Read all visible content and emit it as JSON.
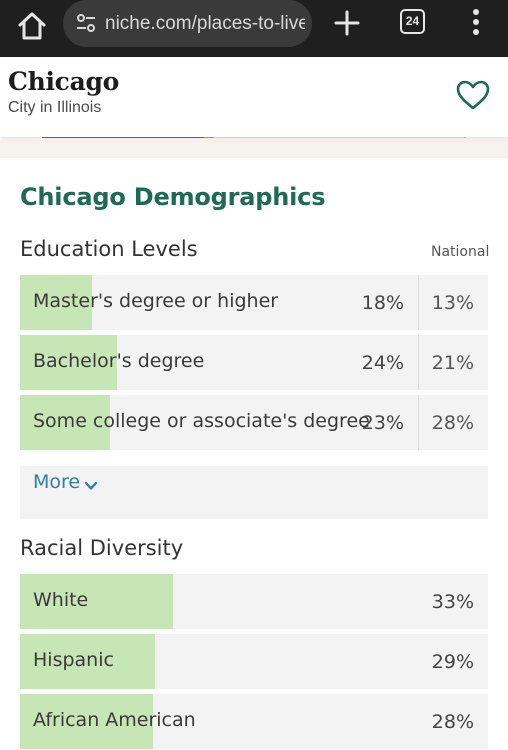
{
  "browser": {
    "url": "niche.com/places-to-live",
    "tab_count": "24"
  },
  "header": {
    "title": "Chicago",
    "subtitle": "City in Illinois"
  },
  "section": {
    "title": "Chicago Demographics"
  },
  "education": {
    "title": "Education Levels",
    "national_label": "National",
    "rows": [
      {
        "label": "Master's degree or higher",
        "value": "18%",
        "national": "13%",
        "fill": 0.18
      },
      {
        "label": "Bachelor's degree",
        "value": "24%",
        "national": "21%",
        "fill": 0.24
      },
      {
        "label": "Some college or associate's degree",
        "value": "23%",
        "national": "28%",
        "fill": 0.23
      }
    ],
    "more_label": "More"
  },
  "race": {
    "title": "Racial Diversity",
    "rows": [
      {
        "label": "White",
        "value": "33%",
        "fill": 0.33
      },
      {
        "label": "Hispanic",
        "value": "29%",
        "fill": 0.29
      },
      {
        "label": "African American",
        "value": "28%",
        "fill": 0.28
      }
    ]
  },
  "colors": {
    "accent": "#1e6a55",
    "bar_fill": "#c7e6b5",
    "link": "#2f7fa6"
  }
}
